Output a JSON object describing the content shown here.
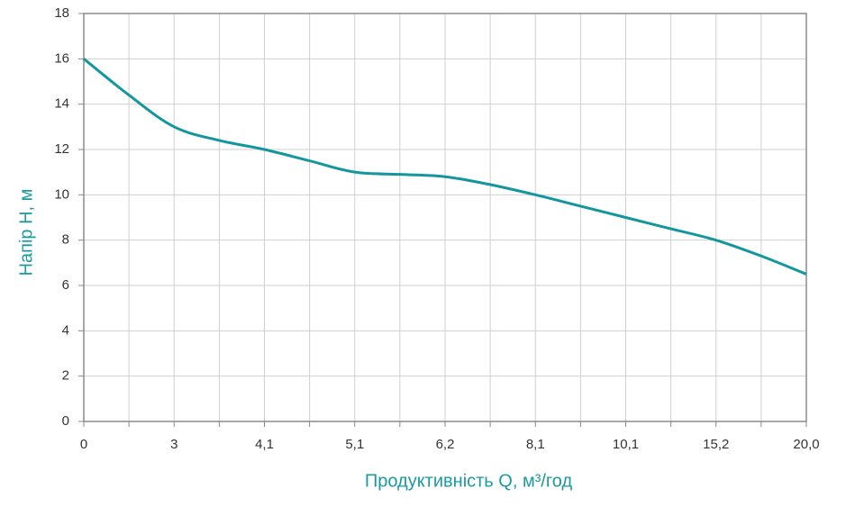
{
  "chart_data": {
    "type": "line",
    "x_label": "Продуктивність Q, м³/год",
    "y_label": "Напір H, м",
    "categories": [
      "0",
      null,
      "3",
      null,
      "4,1",
      null,
      "5,1",
      null,
      "6,2",
      null,
      "8,1",
      null,
      "10,1",
      null,
      "15,2",
      null,
      "20,0"
    ],
    "series": [
      {
        "color": "#13969d",
        "values": [
          16,
          14.4,
          13.0,
          12.4,
          12.0,
          11.5,
          11.0,
          10.9,
          10.8,
          10.45,
          10.0,
          9.5,
          9.0,
          8.5,
          8.0,
          7.3,
          6.5
        ]
      }
    ],
    "ylim": [
      0,
      18
    ],
    "yticks": [
      0,
      2,
      4,
      6,
      8,
      10,
      12,
      14,
      16,
      18
    ],
    "grid": true
  }
}
